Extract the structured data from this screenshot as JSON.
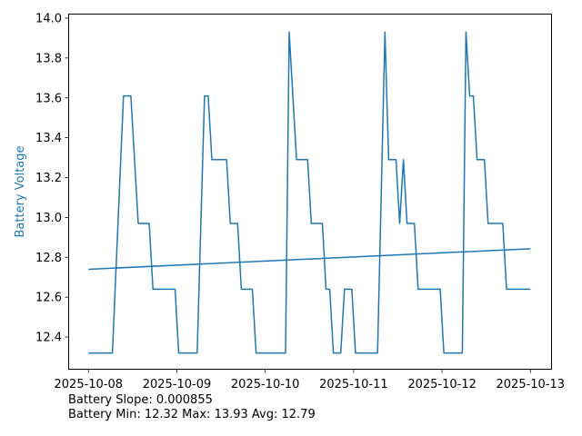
{
  "chart_data": {
    "type": "line",
    "title": "",
    "xlabel": "",
    "ylabel": "Battery Voltage",
    "ylabel_color": "#1f77b4",
    "line_color": "#1f77b4",
    "xlim": [
      "2025-10-07T18:30",
      "2025-10-13T06:00"
    ],
    "ylim": [
      12.24,
      14.01
    ],
    "grid": false,
    "x_ticks": [
      "2025-10-08",
      "2025-10-09",
      "2025-10-10",
      "2025-10-11",
      "2025-10-12",
      "2025-10-13"
    ],
    "y_ticks": [
      "12.4",
      "12.6",
      "12.8",
      "13.0",
      "13.2",
      "13.4",
      "13.6",
      "13.8",
      "14.0"
    ],
    "series": [
      {
        "x": [
          "2025-10-08T00:00",
          "2025-10-08T06:30",
          "2025-10-08T09:30",
          "2025-10-08T11:30",
          "2025-10-08T13:30",
          "2025-10-08T16:30",
          "2025-10-08T17:30",
          "2025-10-08T23:30",
          "2025-10-09T00:30",
          "2025-10-09T05:30",
          "2025-10-09T07:30",
          "2025-10-09T08:30",
          "2025-10-09T09:30",
          "2025-10-09T13:30",
          "2025-10-09T14:30",
          "2025-10-09T16:30",
          "2025-10-09T17:30",
          "2025-10-09T20:30",
          "2025-10-09T21:30",
          "2025-10-10T05:30",
          "2025-10-10T06:30",
          "2025-10-10T08:30",
          "2025-10-10T11:30",
          "2025-10-10T12:30",
          "2025-10-10T15:30",
          "2025-10-10T16:30",
          "2025-10-10T17:30",
          "2025-10-10T18:30",
          "2025-10-10T20:30",
          "2025-10-10T21:30",
          "2025-10-10T23:30",
          "2025-10-11T00:30",
          "2025-10-11T06:30",
          "2025-10-11T08:30",
          "2025-10-11T09:30",
          "2025-10-11T11:30",
          "2025-10-11T12:30",
          "2025-10-11T13:30",
          "2025-10-11T14:30",
          "2025-10-11T16:30",
          "2025-10-11T17:30",
          "2025-10-11T23:30",
          "2025-10-12T00:30",
          "2025-10-12T05:30",
          "2025-10-12T06:30",
          "2025-10-12T07:30",
          "2025-10-12T08:30",
          "2025-10-12T09:30",
          "2025-10-12T11:30",
          "2025-10-12T12:30",
          "2025-10-12T16:30",
          "2025-10-12T17:30",
          "2025-10-13T00:00"
        ],
        "y": [
          12.32,
          12.32,
          13.61,
          13.61,
          12.97,
          12.97,
          12.64,
          12.64,
          12.32,
          12.32,
          13.61,
          13.61,
          13.29,
          13.29,
          12.97,
          12.97,
          12.64,
          12.64,
          12.32,
          12.32,
          13.93,
          13.29,
          13.29,
          12.97,
          12.97,
          12.64,
          12.64,
          12.32,
          12.32,
          12.64,
          12.64,
          12.32,
          12.32,
          13.93,
          13.29,
          13.29,
          12.97,
          13.29,
          12.97,
          12.97,
          12.64,
          12.64,
          12.32,
          12.32,
          13.93,
          13.61,
          13.61,
          13.29,
          13.29,
          12.97,
          12.97,
          12.64,
          12.64
        ]
      }
    ],
    "trend": {
      "x": [
        "2025-10-08T00:00",
        "2025-10-13T00:00"
      ],
      "y": [
        12.74,
        12.843
      ]
    }
  },
  "footer": {
    "slope": "Battery Slope: 0.000855",
    "stats": "Battery Min: 12.32 Max: 13.93 Avg: 12.79"
  }
}
